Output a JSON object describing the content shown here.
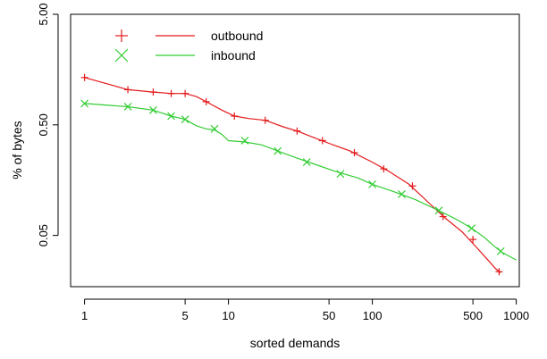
{
  "chart_data": {
    "type": "line",
    "xlabel": "sorted demands",
    "ylabel": "% of bytes",
    "x_scale": "log",
    "y_scale": "log",
    "xlim": [
      0.8,
      1050
    ],
    "ylim": [
      0.0172,
      5.0
    ],
    "x_ticks": [
      {
        "value": 1,
        "label": "1"
      },
      {
        "value": 5,
        "label": "5"
      },
      {
        "value": 10,
        "label": "10"
      },
      {
        "value": 50,
        "label": "50"
      },
      {
        "value": 100,
        "label": "100"
      },
      {
        "value": 500,
        "label": "500"
      },
      {
        "value": 1000,
        "label": "1000"
      }
    ],
    "y_ticks": [
      {
        "value": 0.05,
        "label": "0.05"
      },
      {
        "value": 0.5,
        "label": "0.50"
      },
      {
        "value": 5.0,
        "label": "5.00"
      }
    ],
    "legend_position": "top-left",
    "series": [
      {
        "name": "outbound",
        "color": "#e31a1c",
        "marker": "plus",
        "line": [
          [
            1,
            1.34
          ],
          [
            2,
            1.04
          ],
          [
            3,
            0.99
          ],
          [
            4,
            0.96
          ],
          [
            5,
            0.96
          ],
          [
            6,
            0.9
          ],
          [
            7,
            0.81
          ],
          [
            9,
            0.68
          ],
          [
            11,
            0.6
          ],
          [
            14,
            0.57
          ],
          [
            18,
            0.55
          ],
          [
            24,
            0.48
          ],
          [
            30,
            0.44
          ],
          [
            40,
            0.38
          ],
          [
            50,
            0.34
          ],
          [
            70,
            0.29
          ],
          [
            100,
            0.23
          ],
          [
            130,
            0.19
          ],
          [
            180,
            0.145
          ],
          [
            250,
            0.097
          ],
          [
            320,
            0.072
          ],
          [
            420,
            0.054
          ],
          [
            520,
            0.04
          ],
          [
            620,
            0.031
          ],
          [
            720,
            0.025
          ],
          [
            780,
            0.023
          ]
        ],
        "markers": [
          [
            1,
            1.34
          ],
          [
            2,
            1.04
          ],
          [
            3,
            0.99
          ],
          [
            4,
            0.96
          ],
          [
            5,
            0.96
          ],
          [
            7,
            0.81
          ],
          [
            11,
            0.6
          ],
          [
            18,
            0.55
          ],
          [
            30,
            0.44
          ],
          [
            45,
            0.36
          ],
          [
            75,
            0.28
          ],
          [
            120,
            0.2
          ],
          [
            190,
            0.14
          ],
          [
            310,
            0.074
          ],
          [
            500,
            0.046
          ],
          [
            760,
            0.0235
          ]
        ]
      },
      {
        "name": "inbound",
        "color": "#33cc33",
        "marker": "x",
        "line": [
          [
            1,
            0.78
          ],
          [
            2,
            0.73
          ],
          [
            3,
            0.68
          ],
          [
            4,
            0.6
          ],
          [
            5,
            0.56
          ],
          [
            6,
            0.49
          ],
          [
            7,
            0.46
          ],
          [
            8,
            0.45
          ],
          [
            9,
            0.41
          ],
          [
            10,
            0.36
          ],
          [
            13,
            0.35
          ],
          [
            17,
            0.33
          ],
          [
            22,
            0.29
          ],
          [
            30,
            0.25
          ],
          [
            40,
            0.22
          ],
          [
            55,
            0.19
          ],
          [
            80,
            0.165
          ],
          [
            100,
            0.145
          ],
          [
            140,
            0.125
          ],
          [
            200,
            0.105
          ],
          [
            300,
            0.082
          ],
          [
            400,
            0.068
          ],
          [
            500,
            0.057
          ],
          [
            600,
            0.048
          ],
          [
            700,
            0.04
          ],
          [
            800,
            0.035
          ],
          [
            1000,
            0.03
          ]
        ],
        "markers": [
          [
            1,
            0.78
          ],
          [
            2,
            0.73
          ],
          [
            3,
            0.68
          ],
          [
            4,
            0.6
          ],
          [
            5,
            0.56
          ],
          [
            8,
            0.46
          ],
          [
            13,
            0.36
          ],
          [
            22,
            0.29
          ],
          [
            35,
            0.23
          ],
          [
            60,
            0.18
          ],
          [
            100,
            0.145
          ],
          [
            160,
            0.118
          ],
          [
            290,
            0.084
          ],
          [
            490,
            0.058
          ],
          [
            780,
            0.036
          ]
        ]
      }
    ]
  }
}
